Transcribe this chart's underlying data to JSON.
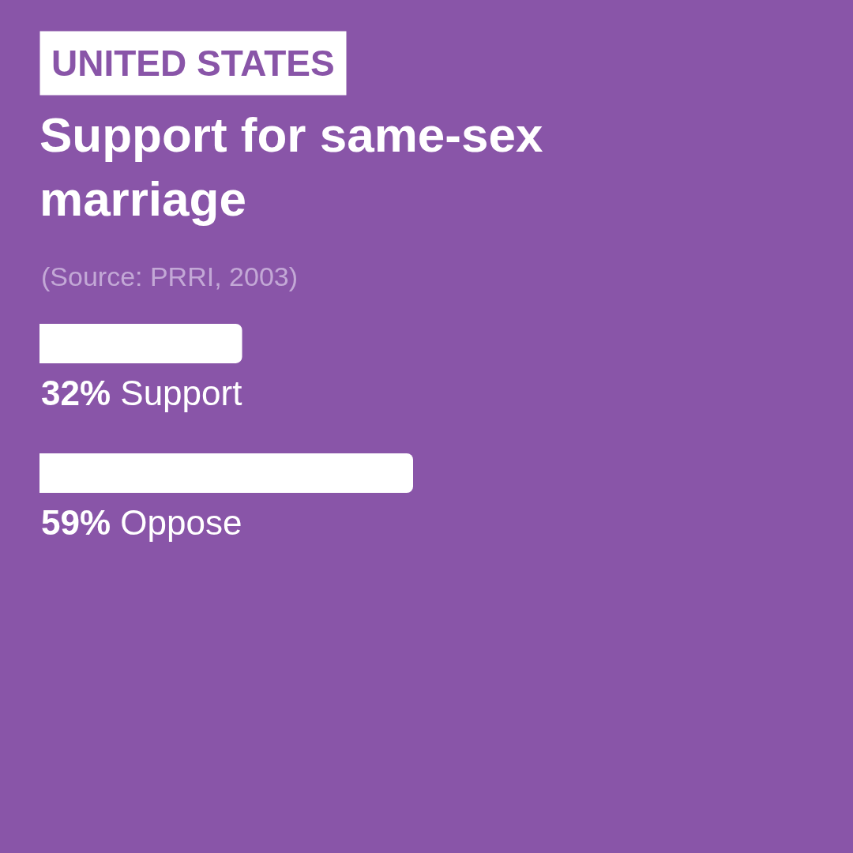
{
  "chart_data": {
    "type": "bar",
    "orientation": "horizontal",
    "title": "Support for same-sex marriage",
    "subtitle": "UNITED STATES",
    "annotations": [
      "(Source: PRRI, 2003)"
    ],
    "categories": [
      "Support",
      "Oppose"
    ],
    "values": [
      32,
      59
    ],
    "value_labels": [
      "32%",
      "59%"
    ],
    "color": "#ffffff",
    "tick_labels": false,
    "grid": false,
    "legend": false
  }
}
